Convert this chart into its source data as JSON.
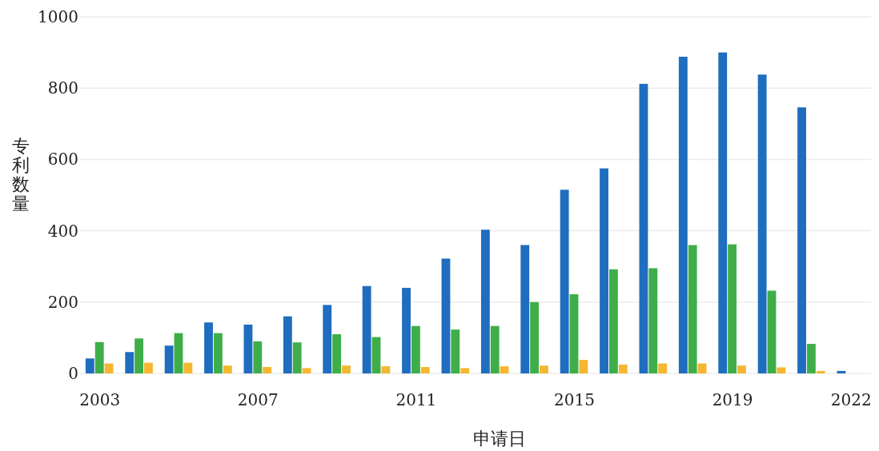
{
  "chart_data": {
    "type": "bar",
    "xlabel": "申请日",
    "ylabel": "专利数量",
    "categories": [
      "2003",
      null,
      null,
      null,
      "2007",
      null,
      null,
      null,
      "2011",
      null,
      null,
      null,
      "2015",
      null,
      null,
      null,
      "2019",
      null,
      null,
      "2022"
    ],
    "series": [
      {
        "color": "#1f6dbf",
        "values": [
          42,
          60,
          78,
          143,
          137,
          160,
          192,
          245,
          240,
          322,
          403,
          360,
          515,
          575,
          812,
          888,
          900,
          838,
          746,
          7
        ]
      },
      {
        "color": "#3fae49",
        "values": [
          88,
          98,
          113,
          113,
          90,
          87,
          110,
          102,
          133,
          123,
          133,
          200,
          222,
          292,
          295,
          360,
          362,
          232,
          83,
          0
        ]
      },
      {
        "color": "#f5b731",
        "values": [
          28,
          30,
          30,
          22,
          18,
          15,
          22,
          20,
          18,
          15,
          20,
          22,
          38,
          25,
          28,
          28,
          22,
          17,
          7,
          0
        ]
      }
    ],
    "ylim": [
      0,
      1000
    ],
    "yticks": [
      0,
      200,
      400,
      600,
      800,
      1000
    ],
    "grid": "y"
  }
}
